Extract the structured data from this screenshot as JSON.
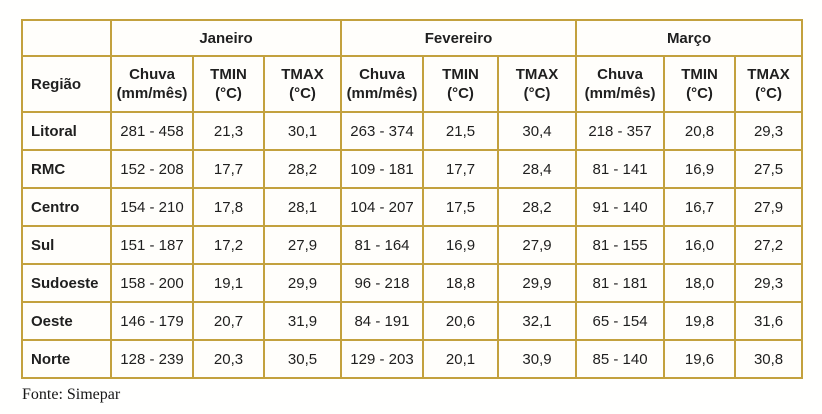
{
  "table": {
    "region_header": "Região",
    "corner_label": "",
    "months": [
      {
        "label": "Janeiro"
      },
      {
        "label": "Fevereiro"
      },
      {
        "label": "Março"
      }
    ],
    "sub_headers": [
      {
        "line1": "Chuva",
        "line2": "(mm/mês)"
      },
      {
        "line1": "TMIN",
        "line2": "(°C)"
      },
      {
        "line1": "TMAX",
        "line2": "(°C)"
      }
    ],
    "rows": [
      {
        "region": "Litoral",
        "values": [
          "281 - 458",
          "21,3",
          "30,1",
          "263 - 374",
          "21,5",
          "30,4",
          "218 - 357",
          "20,8",
          "29,3"
        ]
      },
      {
        "region": "RMC",
        "values": [
          "152 - 208",
          "17,7",
          "28,2",
          "109 - 181",
          "17,7",
          "28,4",
          "81 - 141",
          "16,9",
          "27,5"
        ]
      },
      {
        "region": "Centro",
        "values": [
          "154 - 210",
          "17,8",
          "28,1",
          "104 - 207",
          "17,5",
          "28,2",
          "91 - 140",
          "16,7",
          "27,9"
        ]
      },
      {
        "region": "Sul",
        "values": [
          "151 - 187",
          "17,2",
          "27,9",
          "81 - 164",
          "16,9",
          "27,9",
          "81 - 155",
          "16,0",
          "27,2"
        ]
      },
      {
        "region": "Sudoeste",
        "values": [
          "158 - 200",
          "19,1",
          "29,9",
          "96 - 218",
          "18,8",
          "29,9",
          "81 - 181",
          "18,0",
          "29,3"
        ]
      },
      {
        "region": "Oeste",
        "values": [
          "146 - 179",
          "20,7",
          "31,9",
          "84 - 191",
          "20,6",
          "32,1",
          "65 - 154",
          "19,8",
          "31,6"
        ]
      },
      {
        "region": "Norte",
        "values": [
          "128 - 239",
          "20,3",
          "30,5",
          "129 - 203",
          "20,1",
          "30,9",
          "85 - 140",
          "19,6",
          "30,8"
        ]
      }
    ]
  },
  "footer": {
    "source": "Fonte: Simepar"
  },
  "colors": {
    "table_border": "#c3a13e",
    "cell_background": "#fffefb",
    "text": "#1f1f1f",
    "page_background": "#ffffff"
  },
  "chart_data": {
    "type": "table",
    "title": "",
    "column_groups": [
      "Janeiro",
      "Fevereiro",
      "Março"
    ],
    "columns": [
      "Região",
      "Janeiro Chuva (mm/mês)",
      "Janeiro TMIN (°C)",
      "Janeiro TMAX (°C)",
      "Fevereiro Chuva (mm/mês)",
      "Fevereiro TMIN (°C)",
      "Fevereiro TMAX (°C)",
      "Março Chuva (mm/mês)",
      "Março TMIN (°C)",
      "Março TMAX (°C)"
    ],
    "rows": [
      [
        "Litoral",
        "281 - 458",
        "21,3",
        "30,1",
        "263 - 374",
        "21,5",
        "30,4",
        "218 - 357",
        "20,8",
        "29,3"
      ],
      [
        "RMC",
        "152 - 208",
        "17,7",
        "28,2",
        "109 - 181",
        "17,7",
        "28,4",
        "81 - 141",
        "16,9",
        "27,5"
      ],
      [
        "Centro",
        "154 - 210",
        "17,8",
        "28,1",
        "104 - 207",
        "17,5",
        "28,2",
        "91 - 140",
        "16,7",
        "27,9"
      ],
      [
        "Sul",
        "151 - 187",
        "17,2",
        "27,9",
        "81 - 164",
        "16,9",
        "27,9",
        "81 - 155",
        "16,0",
        "27,2"
      ],
      [
        "Sudoeste",
        "158 - 200",
        "19,1",
        "29,9",
        "96 - 218",
        "18,8",
        "29,9",
        "81 - 181",
        "18,0",
        "29,3"
      ],
      [
        "Oeste",
        "146 - 179",
        "20,7",
        "31,9",
        "84 - 191",
        "20,6",
        "32,1",
        "65 - 154",
        "19,8",
        "31,6"
      ],
      [
        "Norte",
        "128 - 239",
        "20,3",
        "30,5",
        "129 - 203",
        "20,1",
        "30,9",
        "85 - 140",
        "19,6",
        "30,8"
      ]
    ],
    "source": "Fonte: Simepar",
    "layout": {
      "grid": true,
      "header_rows": 2,
      "first_column_is_row_label": true
    }
  }
}
